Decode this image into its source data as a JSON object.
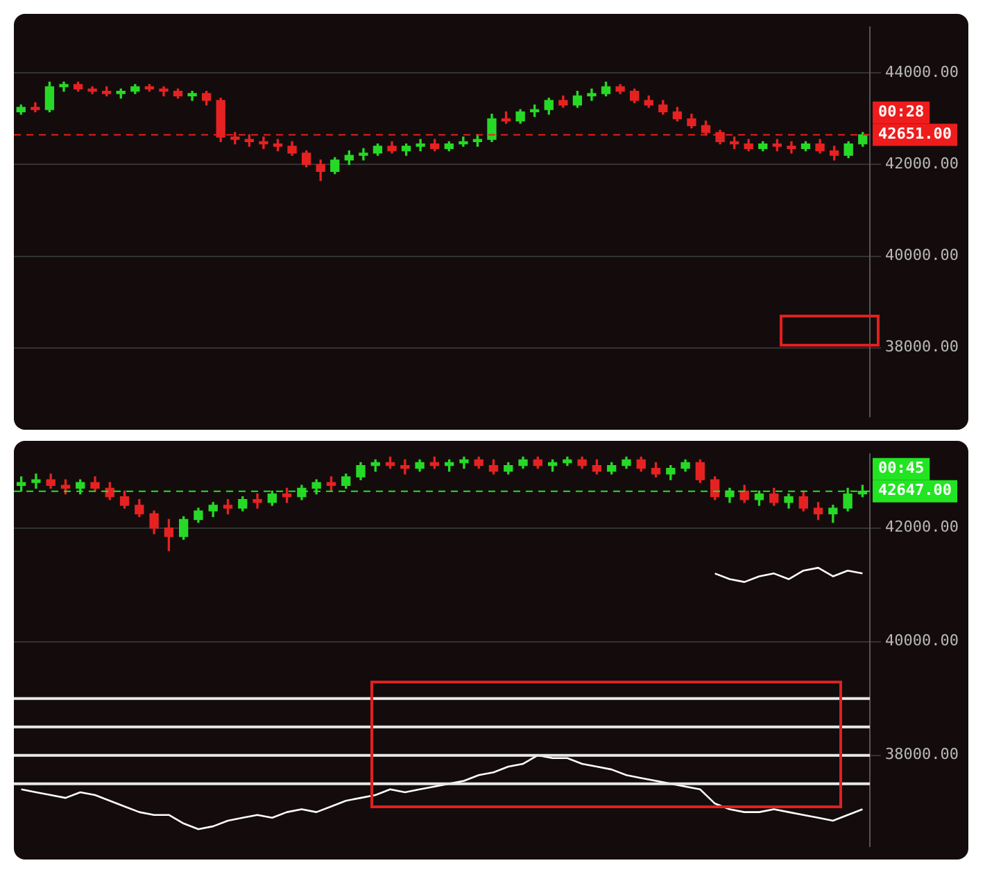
{
  "chart_data": [
    {
      "type": "candlestick",
      "categories": [
        null,
        null,
        null,
        null,
        null,
        null,
        null,
        null,
        null,
        null,
        null,
        null,
        null,
        null,
        null,
        null,
        null,
        null,
        null,
        null,
        null,
        null,
        null,
        null,
        null,
        null,
        null,
        null,
        null,
        null,
        null,
        null,
        null,
        null,
        null,
        null,
        null,
        null,
        null,
        null,
        null,
        null,
        null,
        null,
        null,
        null,
        null,
        null,
        null,
        null,
        null,
        null,
        null,
        null,
        null,
        null,
        null,
        null,
        null,
        null
      ],
      "ohlc": [
        [
          43150,
          43300,
          43100,
          43250
        ],
        [
          43250,
          43350,
          43150,
          43200
        ],
        [
          43200,
          43800,
          43150,
          43700
        ],
        [
          43700,
          43800,
          43600,
          43750
        ],
        [
          43750,
          43800,
          43600,
          43650
        ],
        [
          43650,
          43700,
          43550,
          43600
        ],
        [
          43600,
          43700,
          43500,
          43550
        ],
        [
          43550,
          43650,
          43450,
          43600
        ],
        [
          43600,
          43750,
          43550,
          43700
        ],
        [
          43700,
          43750,
          43600,
          43650
        ],
        [
          43650,
          43700,
          43500,
          43600
        ],
        [
          43600,
          43650,
          43450,
          43500
        ],
        [
          43500,
          43600,
          43400,
          43550
        ],
        [
          43550,
          43600,
          43300,
          43400
        ],
        [
          43400,
          43450,
          42500,
          42600
        ],
        [
          42600,
          42700,
          42450,
          42550
        ],
        [
          42550,
          42650,
          42400,
          42500
        ],
        [
          42500,
          42600,
          42350,
          42450
        ],
        [
          42450,
          42550,
          42300,
          42400
        ],
        [
          42400,
          42500,
          42200,
          42250
        ],
        [
          42250,
          42300,
          41950,
          42000
        ],
        [
          42000,
          42100,
          41650,
          41850
        ],
        [
          41850,
          42150,
          41800,
          42100
        ],
        [
          42100,
          42300,
          42000,
          42200
        ],
        [
          42200,
          42350,
          42100,
          42250
        ],
        [
          42250,
          42450,
          42200,
          42400
        ],
        [
          42400,
          42500,
          42250,
          42300
        ],
        [
          42300,
          42450,
          42200,
          42400
        ],
        [
          42400,
          42550,
          42300,
          42450
        ],
        [
          42450,
          42550,
          42300,
          42350
        ],
        [
          42350,
          42500,
          42300,
          42450
        ],
        [
          42450,
          42600,
          42400,
          42500
        ],
        [
          42500,
          42650,
          42400,
          42550
        ],
        [
          42550,
          43100,
          42500,
          43000
        ],
        [
          43000,
          43150,
          42900,
          42950
        ],
        [
          42950,
          43200,
          42900,
          43150
        ],
        [
          43150,
          43300,
          43050,
          43200
        ],
        [
          43200,
          43450,
          43100,
          43400
        ],
        [
          43400,
          43500,
          43250,
          43300
        ],
        [
          43300,
          43600,
          43250,
          43500
        ],
        [
          43500,
          43650,
          43400,
          43550
        ],
        [
          43550,
          43800,
          43500,
          43700
        ],
        [
          43700,
          43750,
          43550,
          43600
        ],
        [
          43600,
          43650,
          43350,
          43400
        ],
        [
          43400,
          43500,
          43250,
          43300
        ],
        [
          43300,
          43400,
          43100,
          43150
        ],
        [
          43150,
          43250,
          42950,
          43000
        ],
        [
          43000,
          43100,
          42800,
          42850
        ],
        [
          42850,
          42950,
          42650,
          42700
        ],
        [
          42700,
          42750,
          42450,
          42500
        ],
        [
          42500,
          42600,
          42350,
          42450
        ],
        [
          42450,
          42550,
          42300,
          42350
        ],
        [
          42350,
          42500,
          42300,
          42450
        ],
        [
          42450,
          42550,
          42300,
          42400
        ],
        [
          42400,
          42500,
          42250,
          42350
        ],
        [
          42350,
          42500,
          42300,
          42450
        ],
        [
          42450,
          42550,
          42250,
          42300
        ],
        [
          42300,
          42400,
          42100,
          42200
        ],
        [
          42200,
          42500,
          42150,
          42450
        ],
        [
          42450,
          42700,
          42400,
          42651
        ]
      ],
      "colors": [
        "#27d927",
        "#e52222",
        "#27d927",
        "#27d927",
        "#e52222",
        "#e52222",
        "#e52222",
        "#27d927",
        "#27d927",
        "#e52222",
        "#e52222",
        "#e52222",
        "#27d927",
        "#e52222",
        "#e52222",
        "#e52222",
        "#e52222",
        "#e52222",
        "#e52222",
        "#e52222",
        "#e52222",
        "#e52222",
        "#27d927",
        "#27d927",
        "#27d927",
        "#27d927",
        "#e52222",
        "#27d927",
        "#27d927",
        "#e52222",
        "#27d927",
        "#27d927",
        "#27d927",
        "#27d927",
        "#e52222",
        "#27d927",
        "#27d927",
        "#27d927",
        "#e52222",
        "#27d927",
        "#27d927",
        "#27d927",
        "#e52222",
        "#e52222",
        "#e52222",
        "#e52222",
        "#e52222",
        "#e52222",
        "#e52222",
        "#e52222",
        "#e52222",
        "#e52222",
        "#27d927",
        "#e52222",
        "#e52222",
        "#27d927",
        "#e52222",
        "#e52222",
        "#27d927",
        "#27d927"
      ],
      "ylim": [
        36500,
        45000
      ],
      "yticks": [
        {
          "value": 38000,
          "label": "38000.00"
        },
        {
          "value": 40000,
          "label": "40000.00"
        },
        {
          "value": 42000,
          "label": "42000.00"
        },
        {
          "value": 44000,
          "label": "44000.00"
        }
      ],
      "ref_lines": [
        {
          "axis": "y",
          "value": 42651,
          "label": "42651.00",
          "color": "#ee1c1c",
          "line_style": "dashed"
        }
      ],
      "annotations": [
        "00:28"
      ],
      "grid": "y",
      "tick_labels": "y",
      "legend": false
    },
    {
      "type": "candlestick",
      "categories": [
        null,
        null,
        null,
        null,
        null,
        null,
        null,
        null,
        null,
        null,
        null,
        null,
        null,
        null,
        null,
        null,
        null,
        null,
        null,
        null,
        null,
        null,
        null,
        null,
        null,
        null,
        null,
        null,
        null,
        null,
        null,
        null,
        null,
        null,
        null,
        null,
        null,
        null,
        null,
        null,
        null,
        null,
        null,
        null,
        null,
        null,
        null,
        null,
        null,
        null,
        null,
        null,
        null,
        null,
        null,
        null,
        null,
        null
      ],
      "ohlc": [
        [
          42750,
          42900,
          42650,
          42800
        ],
        [
          42800,
          42950,
          42700,
          42850
        ],
        [
          42850,
          42950,
          42700,
          42750
        ],
        [
          42750,
          42850,
          42600,
          42700
        ],
        [
          42700,
          42850,
          42600,
          42800
        ],
        [
          42800,
          42900,
          42650,
          42700
        ],
        [
          42700,
          42800,
          42500,
          42550
        ],
        [
          42550,
          42650,
          42350,
          42400
        ],
        [
          42400,
          42500,
          42200,
          42250
        ],
        [
          42250,
          42300,
          41900,
          42000
        ],
        [
          42000,
          42150,
          41600,
          41850
        ],
        [
          41850,
          42200,
          41800,
          42150
        ],
        [
          42150,
          42350,
          42100,
          42300
        ],
        [
          42300,
          42450,
          42200,
          42400
        ],
        [
          42400,
          42500,
          42250,
          42350
        ],
        [
          42350,
          42550,
          42300,
          42500
        ],
        [
          42500,
          42600,
          42350,
          42450
        ],
        [
          42450,
          42650,
          42400,
          42600
        ],
        [
          42600,
          42700,
          42450,
          42550
        ],
        [
          42550,
          42750,
          42500,
          42700
        ],
        [
          42700,
          42850,
          42600,
          42800
        ],
        [
          42800,
          42900,
          42650,
          42750
        ],
        [
          42750,
          42950,
          42700,
          42900
        ],
        [
          42900,
          43150,
          42850,
          43100
        ],
        [
          43100,
          43200,
          43000,
          43150
        ],
        [
          43150,
          43250,
          43050,
          43100
        ],
        [
          43100,
          43200,
          42950,
          43050
        ],
        [
          43050,
          43200,
          43000,
          43150
        ],
        [
          43150,
          43250,
          43050,
          43100
        ],
        [
          43100,
          43200,
          43000,
          43150
        ],
        [
          43150,
          43250,
          43050,
          43200
        ],
        [
          43200,
          43250,
          43050,
          43100
        ],
        [
          43100,
          43200,
          42950,
          43000
        ],
        [
          43000,
          43150,
          42950,
          43100
        ],
        [
          43100,
          43250,
          43050,
          43200
        ],
        [
          43200,
          43250,
          43050,
          43100
        ],
        [
          43100,
          43200,
          43000,
          43150
        ],
        [
          43150,
          43250,
          43100,
          43200
        ],
        [
          43200,
          43250,
          43050,
          43100
        ],
        [
          43100,
          43200,
          42950,
          43000
        ],
        [
          43000,
          43150,
          42950,
          43100
        ],
        [
          43100,
          43250,
          43050,
          43200
        ],
        [
          43200,
          43250,
          43000,
          43050
        ],
        [
          43050,
          43150,
          42900,
          42950
        ],
        [
          42950,
          43100,
          42850,
          43050
        ],
        [
          43050,
          43200,
          43000,
          43150
        ],
        [
          43150,
          43200,
          42800,
          42850
        ],
        [
          42850,
          42900,
          42500,
          42550
        ],
        [
          42550,
          42700,
          42450,
          42650
        ],
        [
          42650,
          42750,
          42450,
          42500
        ],
        [
          42500,
          42650,
          42400,
          42600
        ],
        [
          42600,
          42700,
          42400,
          42450
        ],
        [
          42450,
          42600,
          42350,
          42550
        ],
        [
          42550,
          42650,
          42300,
          42350
        ],
        [
          42350,
          42450,
          42150,
          42250
        ],
        [
          42250,
          42400,
          42100,
          42350
        ],
        [
          42350,
          42700,
          42300,
          42600
        ],
        [
          42600,
          42750,
          42550,
          42647
        ]
      ],
      "colors": [
        "#27d927",
        "#27d927",
        "#e52222",
        "#e52222",
        "#27d927",
        "#e52222",
        "#e52222",
        "#e52222",
        "#e52222",
        "#e52222",
        "#e52222",
        "#27d927",
        "#27d927",
        "#27d927",
        "#e52222",
        "#27d927",
        "#e52222",
        "#27d927",
        "#e52222",
        "#27d927",
        "#27d927",
        "#e52222",
        "#27d927",
        "#27d927",
        "#27d927",
        "#e52222",
        "#e52222",
        "#27d927",
        "#e52222",
        "#27d927",
        "#27d927",
        "#e52222",
        "#e52222",
        "#27d927",
        "#27d927",
        "#e52222",
        "#27d927",
        "#27d927",
        "#e52222",
        "#e52222",
        "#27d927",
        "#27d927",
        "#e52222",
        "#e52222",
        "#27d927",
        "#27d927",
        "#e52222",
        "#e52222",
        "#27d927",
        "#e52222",
        "#27d927",
        "#e52222",
        "#27d927",
        "#e52222",
        "#e52222",
        "#27d927",
        "#27d927",
        "#27d927"
      ],
      "series": [
        {
          "type": "line",
          "color": "#ffffff",
          "values": [
            37400,
            37350,
            37300,
            37250,
            37350,
            37300,
            37200,
            37100,
            37000,
            36950,
            36950,
            36800,
            36700,
            36750,
            36850,
            36900,
            36950,
            36900,
            37000,
            37050,
            37000,
            37100,
            37200,
            37250,
            37300,
            37400,
            37350,
            37400,
            37450,
            37500,
            37550,
            37650,
            37700,
            37800,
            37850,
            38000,
            37950,
            37950,
            37850,
            37800,
            37750,
            37650,
            37600,
            37550,
            37500,
            37450,
            37400,
            37150,
            37050,
            37000,
            37000,
            37050,
            37000,
            36950,
            36900,
            36850,
            36950,
            37050
          ]
        },
        {
          "type": "line",
          "color": "#ffffff",
          "values": [
            null,
            null,
            null,
            null,
            null,
            null,
            null,
            null,
            null,
            null,
            null,
            null,
            null,
            null,
            null,
            null,
            null,
            null,
            null,
            null,
            null,
            null,
            null,
            null,
            null,
            null,
            null,
            null,
            null,
            null,
            null,
            null,
            null,
            null,
            null,
            null,
            null,
            null,
            null,
            null,
            null,
            null,
            null,
            null,
            null,
            null,
            null,
            41200,
            41100,
            41050,
            41150,
            41200,
            41100,
            41250,
            41300,
            41150,
            41250,
            41200
          ]
        }
      ],
      "ylim": [
        36400,
        43300
      ],
      "yticks": [
        {
          "value": 38000,
          "label": "38000.00"
        },
        {
          "value": 40000,
          "label": "40000.00"
        },
        {
          "value": 42000,
          "label": "42000.00"
        }
      ],
      "ref_lines": [
        {
          "axis": "y",
          "value": 42647,
          "label": "42647.00",
          "color": "#22e522",
          "line_style": "dashed"
        },
        {
          "axis": "y",
          "value": 39000,
          "color": "#e8e8e8"
        },
        {
          "axis": "y",
          "value": 38500,
          "color": "#e8e8e8"
        },
        {
          "axis": "y",
          "value": 38000,
          "color": "#e8e8e8"
        },
        {
          "axis": "y",
          "value": 37500,
          "color": "#e8e8e8"
        }
      ],
      "annotations": [
        "00:45"
      ],
      "grid": "y",
      "tick_labels": "y",
      "legend": false,
      "marker": "none"
    }
  ]
}
